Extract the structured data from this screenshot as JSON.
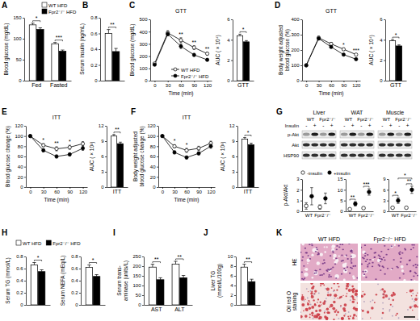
{
  "chart_data": [
    {
      "panel": "A",
      "type": "bar",
      "y_label": "Blood glucose (mg/dL)",
      "categories": [
        "Fed",
        "Fasted"
      ],
      "series": [
        {
          "name": "WT HFD",
          "color": "#ffffff",
          "values": [
            133,
            88
          ],
          "errors": [
            4,
            3
          ]
        },
        {
          "name": "Fpr2⁻/⁻ HFD",
          "color": "#000000",
          "values": [
            122,
            70
          ],
          "errors": [
            4,
            3
          ]
        }
      ],
      "ylim": [
        0,
        150
      ],
      "yticks": [
        0,
        50,
        100,
        150
      ],
      "significance": [
        "*",
        "***"
      ],
      "legend": "top"
    },
    {
      "panel": "B",
      "type": "bar",
      "y_label": "Serum insulin (ng/mL)",
      "categories": [
        null
      ],
      "series": [
        {
          "color": "#ffffff",
          "values": [
            0.6
          ],
          "errors": [
            0.05
          ]
        },
        {
          "color": "#000000",
          "values": [
            0.37
          ],
          "errors": [
            0.04
          ]
        }
      ],
      "ylim": [
        0,
        0.8
      ],
      "yticks": [
        0,
        0.2,
        0.4,
        0.6,
        0.8
      ],
      "significance": [
        "**"
      ]
    },
    {
      "panel": "C",
      "type": "line",
      "title": "GTT",
      "x_label": "Time (min)",
      "y_label": "Blood glucose (mg/dL)",
      "x": [
        0,
        30,
        60,
        90,
        120
      ],
      "xlim": [
        -10,
        130
      ],
      "xticks": [
        0,
        30,
        60,
        90,
        120
      ],
      "ylim": [
        0,
        500
      ],
      "yticks": [
        0,
        100,
        200,
        300,
        400,
        500
      ],
      "series": [
        {
          "name": "WT HFD",
          "color": "#ffffff",
          "marker": "circle",
          "values": [
            140,
            390,
            330,
            270,
            220
          ],
          "errors": [
            8,
            18,
            20,
            15,
            12
          ]
        },
        {
          "name": "Fpr2⁻/⁻ HFD",
          "color": "#000000",
          "marker": "circle",
          "values": [
            130,
            380,
            280,
            210,
            170
          ],
          "errors": [
            7,
            15,
            18,
            12,
            10
          ]
        }
      ],
      "significance": [
        null,
        null,
        "**",
        "**",
        "**"
      ],
      "legend": "bottom-right"
    },
    {
      "type": "bar",
      "y_label": "AUC ( × 10⁴)",
      "categories": [
        "GTT"
      ],
      "series": [
        {
          "color": "#ffffff",
          "values": [
            4.4
          ],
          "errors": [
            0.15
          ]
        },
        {
          "color": "#000000",
          "values": [
            3.8
          ],
          "errors": [
            0.12
          ]
        }
      ],
      "ylim": [
        0,
        6
      ],
      "yticks": [
        0,
        2,
        4,
        6
      ],
      "significance": [
        "*"
      ]
    },
    {
      "panel": "D",
      "type": "line",
      "title": "GTT",
      "x_label": "Time (min)",
      "y_label": [
        "Body weight adjusted",
        "blood glucose (%)"
      ],
      "x": [
        0,
        30,
        60,
        90,
        120
      ],
      "xlim": [
        -10,
        130
      ],
      "xticks": [
        0,
        30,
        60,
        90,
        120
      ],
      "ylim": [
        0,
        400
      ],
      "yticks": [
        0,
        100,
        200,
        300,
        400
      ],
      "series": [
        {
          "color": "#ffffff",
          "marker": "circle",
          "values": [
            100,
            280,
            240,
            205,
            170
          ],
          "errors": [
            0,
            10,
            10,
            8,
            6
          ]
        },
        {
          "color": "#000000",
          "marker": "circle",
          "values": [
            100,
            275,
            220,
            170,
            140
          ],
          "errors": [
            0,
            9,
            8,
            6,
            5
          ]
        }
      ],
      "significance": [
        null,
        null,
        null,
        "*",
        "***"
      ]
    },
    {
      "type": "bar",
      "y_label": "AUC ( × 10⁴)",
      "categories": [
        "GTT"
      ],
      "series": [
        {
          "color": "#ffffff",
          "values": [
            3.9
          ],
          "errors": [
            0.12
          ]
        },
        {
          "color": "#000000",
          "values": [
            3.4
          ],
          "errors": [
            0.1
          ]
        }
      ],
      "ylim": [
        0,
        6
      ],
      "yticks": [
        0,
        2,
        4,
        6
      ],
      "significance": [
        "*"
      ]
    },
    {
      "panel": "E",
      "type": "line",
      "title": "ITT",
      "x_label": "Time (min)",
      "y_label": "Blood glucose change (%)",
      "x": [
        0,
        30,
        60,
        90,
        120
      ],
      "xlim": [
        -10,
        130
      ],
      "xticks": [
        0,
        30,
        60,
        90,
        120
      ],
      "ylim": [
        0,
        120
      ],
      "yticks": [
        0,
        20,
        40,
        60,
        80,
        100,
        120
      ],
      "series": [
        {
          "color": "#ffffff",
          "marker": "circle",
          "values": [
            100,
            82,
            75,
            78,
            85
          ],
          "errors": [
            0,
            3,
            4,
            4,
            4
          ]
        },
        {
          "color": "#000000",
          "marker": "circle",
          "values": [
            100,
            72,
            60,
            64,
            76
          ],
          "errors": [
            0,
            3,
            3,
            3,
            4
          ]
        }
      ],
      "significance": [
        null,
        "*",
        "**",
        "*",
        null
      ]
    },
    {
      "type": "bar",
      "y_label": "AUC ( × 10³)",
      "categories": [
        "ITT"
      ],
      "series": [
        {
          "color": "#ffffff",
          "values": [
            10.0
          ],
          "errors": [
            0.3
          ]
        },
        {
          "color": "#000000",
          "values": [
            8.5
          ],
          "errors": [
            0.3
          ]
        }
      ],
      "ylim": [
        0,
        12
      ],
      "yticks": [
        0,
        3,
        6,
        9,
        12
      ],
      "significance": [
        "**"
      ]
    },
    {
      "panel": "F",
      "type": "line",
      "title": "ITT",
      "x_label": "Time (min)",
      "y_label": [
        "Body weight adjusted",
        "blood glucose change (%)"
      ],
      "x": [
        0,
        30,
        60,
        90,
        120
      ],
      "xlim": [
        -10,
        130
      ],
      "xticks": [
        0,
        30,
        60,
        90,
        120
      ],
      "ylim": [
        0,
        120
      ],
      "yticks": [
        0,
        20,
        40,
        60,
        80,
        100,
        120
      ],
      "series": [
        {
          "color": "#ffffff",
          "marker": "circle",
          "values": [
            100,
            80,
            72,
            76,
            86
          ],
          "errors": [
            0,
            3,
            4,
            4,
            4
          ]
        },
        {
          "color": "#000000",
          "marker": "circle",
          "values": [
            100,
            68,
            58,
            66,
            80
          ],
          "errors": [
            0,
            3,
            3,
            3,
            4
          ]
        }
      ],
      "significance": [
        null,
        "*",
        "*",
        null,
        null
      ]
    },
    {
      "type": "bar",
      "y_label": "AUC ( × 10³)",
      "categories": [
        "ITT"
      ],
      "series": [
        {
          "color": "#ffffff",
          "values": [
            9.4
          ],
          "errors": [
            0.3
          ]
        },
        {
          "color": "#000000",
          "values": [
            8.3
          ],
          "errors": [
            0.3
          ]
        }
      ],
      "ylim": [
        0,
        12
      ],
      "yticks": [
        0,
        3,
        6,
        9,
        12
      ],
      "significance": [
        "*"
      ]
    },
    {
      "panel": "G",
      "type": "blot",
      "tissues": [
        "Liver",
        "WAT",
        "Muscle"
      ],
      "groups": [
        "WT",
        "Fpr2⁻/⁻"
      ],
      "insulin_label": "Insulin",
      "insulin_states": [
        "-",
        "+"
      ],
      "rows": [
        "p-Akt",
        "Akt",
        "HSP90"
      ]
    },
    {
      "type": "dot",
      "y_label": "p-Akt/Akt",
      "categories": [
        "WT",
        "Fpr2⁻/⁻"
      ],
      "series": [
        {
          "name": "-insulin",
          "color": "#ffffff",
          "marker": "circle",
          "values": [
            0.5,
            0.4
          ],
          "errors": [
            0.3,
            0.2
          ]
        },
        {
          "name": "+insulin",
          "color": "#000000",
          "marker": "circle",
          "values": [
            1.4,
            1.2
          ],
          "errors": [
            0.8,
            0.5
          ]
        }
      ],
      "ylim": [
        0,
        3
      ],
      "yticks": [
        0,
        1,
        2,
        3
      ],
      "legend": "top"
    },
    {
      "type": "dot",
      "categories": [
        "WT",
        "Fpr2⁻/⁻"
      ],
      "series": [
        {
          "color": "#ffffff",
          "marker": "circle",
          "values": [
            1.0,
            1.5
          ],
          "errors": [
            0.3,
            0.5
          ]
        },
        {
          "color": "#000000",
          "marker": "circle",
          "values": [
            3.5,
            9.0
          ],
          "errors": [
            1.0,
            1.5
          ]
        }
      ],
      "ylim": [
        0,
        15
      ],
      "yticks": [
        0,
        5,
        10,
        15
      ],
      "significance": [
        "**",
        "***"
      ]
    },
    {
      "type": "dot",
      "categories": [
        "WT",
        "Fpr2⁻/⁻"
      ],
      "series": [
        {
          "color": "#ffffff",
          "marker": "circle",
          "values": [
            1.0,
            1.0
          ],
          "errors": [
            0.2,
            0.2
          ]
        },
        {
          "color": "#000000",
          "marker": "circle",
          "values": [
            3.0,
            6.0
          ],
          "errors": [
            0.8,
            1.0
          ]
        }
      ],
      "ylim": [
        0,
        9
      ],
      "yticks": [
        0,
        3,
        6,
        9
      ],
      "significance": [
        "*",
        "**"
      ],
      "significance_across": "*"
    },
    {
      "panel": "H",
      "type": "bar",
      "y_label": "Serum TG (mmol/L)",
      "categories": [
        null
      ],
      "series": [
        {
          "name": "WT HFD",
          "color": "#ffffff",
          "values": [
            0.66
          ],
          "errors": [
            0.04
          ]
        },
        {
          "name": "Fpr2⁻/⁻ HFD",
          "color": "#000000",
          "values": [
            0.55
          ],
          "errors": [
            0.03
          ]
        }
      ],
      "ylim": [
        0,
        0.8
      ],
      "yticks": [
        0,
        0.2,
        0.4,
        0.6,
        0.8
      ],
      "significance": [
        "*"
      ],
      "legend": "top"
    },
    {
      "type": "bar",
      "y_label": "Serum NEFA (mEq/L)",
      "categories": [
        null
      ],
      "series": [
        {
          "color": "#ffffff",
          "values": [
            0.62
          ],
          "errors": [
            0.04
          ]
        },
        {
          "color": "#000000",
          "values": [
            0.47
          ],
          "errors": [
            0.03
          ]
        }
      ],
      "ylim": [
        0,
        0.8
      ],
      "yticks": [
        0,
        0.2,
        0.4,
        0.6,
        0.8
      ],
      "significance": [
        "*"
      ]
    },
    {
      "panel": "I",
      "type": "bar",
      "y_label": [
        "Serum trans-",
        "aminase (units/L)"
      ],
      "categories": [
        "AST",
        "ALT"
      ],
      "series": [
        {
          "color": "#ffffff",
          "values": [
            195,
            210
          ],
          "errors": [
            15,
            15
          ]
        },
        {
          "color": "#000000",
          "values": [
            130,
            140
          ],
          "errors": [
            10,
            12
          ]
        }
      ],
      "ylim": [
        0,
        250
      ],
      "yticks": [
        0,
        50,
        100,
        150,
        200,
        250
      ],
      "significance": [
        "**",
        "**"
      ]
    },
    {
      "panel": "J",
      "type": "bar",
      "y_label": [
        "Liver TG",
        "(mmol/L/100g)"
      ],
      "categories": [
        null
      ],
      "series": [
        {
          "color": "#ffffff",
          "values": [
            7.8
          ],
          "errors": [
            0.6
          ]
        },
        {
          "color": "#000000",
          "values": [
            4.8
          ],
          "errors": [
            0.5
          ]
        }
      ],
      "ylim": [
        0,
        10
      ],
      "yticks": [
        0,
        2,
        4,
        6,
        8,
        10
      ],
      "significance": [
        "**"
      ]
    },
    {
      "panel": "K",
      "type": "image_grid",
      "columns": [
        "WT HFD",
        "Fpr2⁻/⁻ HFD"
      ],
      "rows": [
        "HE",
        [
          "Oil red O",
          "staining"
        ]
      ]
    }
  ]
}
